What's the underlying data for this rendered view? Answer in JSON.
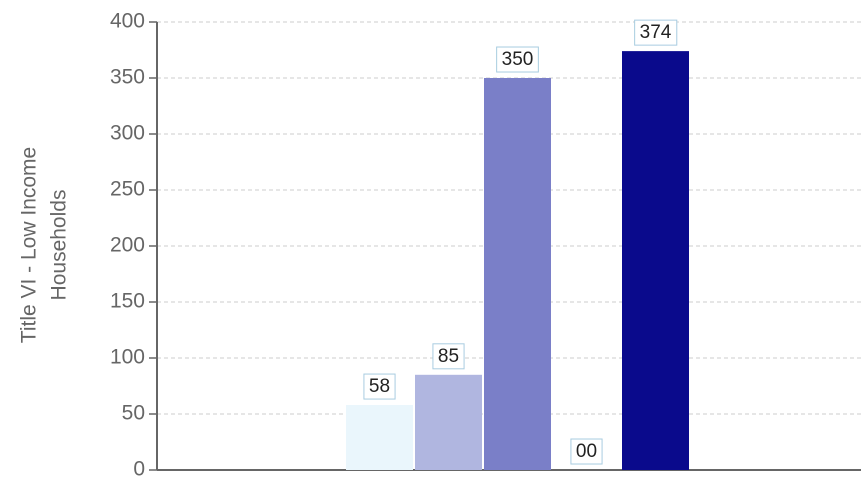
{
  "chart_data": {
    "type": "bar",
    "ylabel": [
      "Title VI - Low Income",
      "Households"
    ],
    "categories": [
      null,
      null,
      null,
      null,
      null
    ],
    "values": [
      58,
      85,
      350,
      0,
      374
    ],
    "value_labels": [
      "58",
      "85",
      "350",
      "00",
      "374"
    ],
    "colors": [
      "#eaf6fc",
      "#b0b6e0",
      "#7a7fc8",
      "#5a5fb8",
      "#0a0a8c"
    ],
    "ylim": [
      0,
      400
    ],
    "yticks": [
      0,
      50,
      100,
      150,
      200,
      250,
      300,
      350,
      400
    ],
    "grid": true
  }
}
